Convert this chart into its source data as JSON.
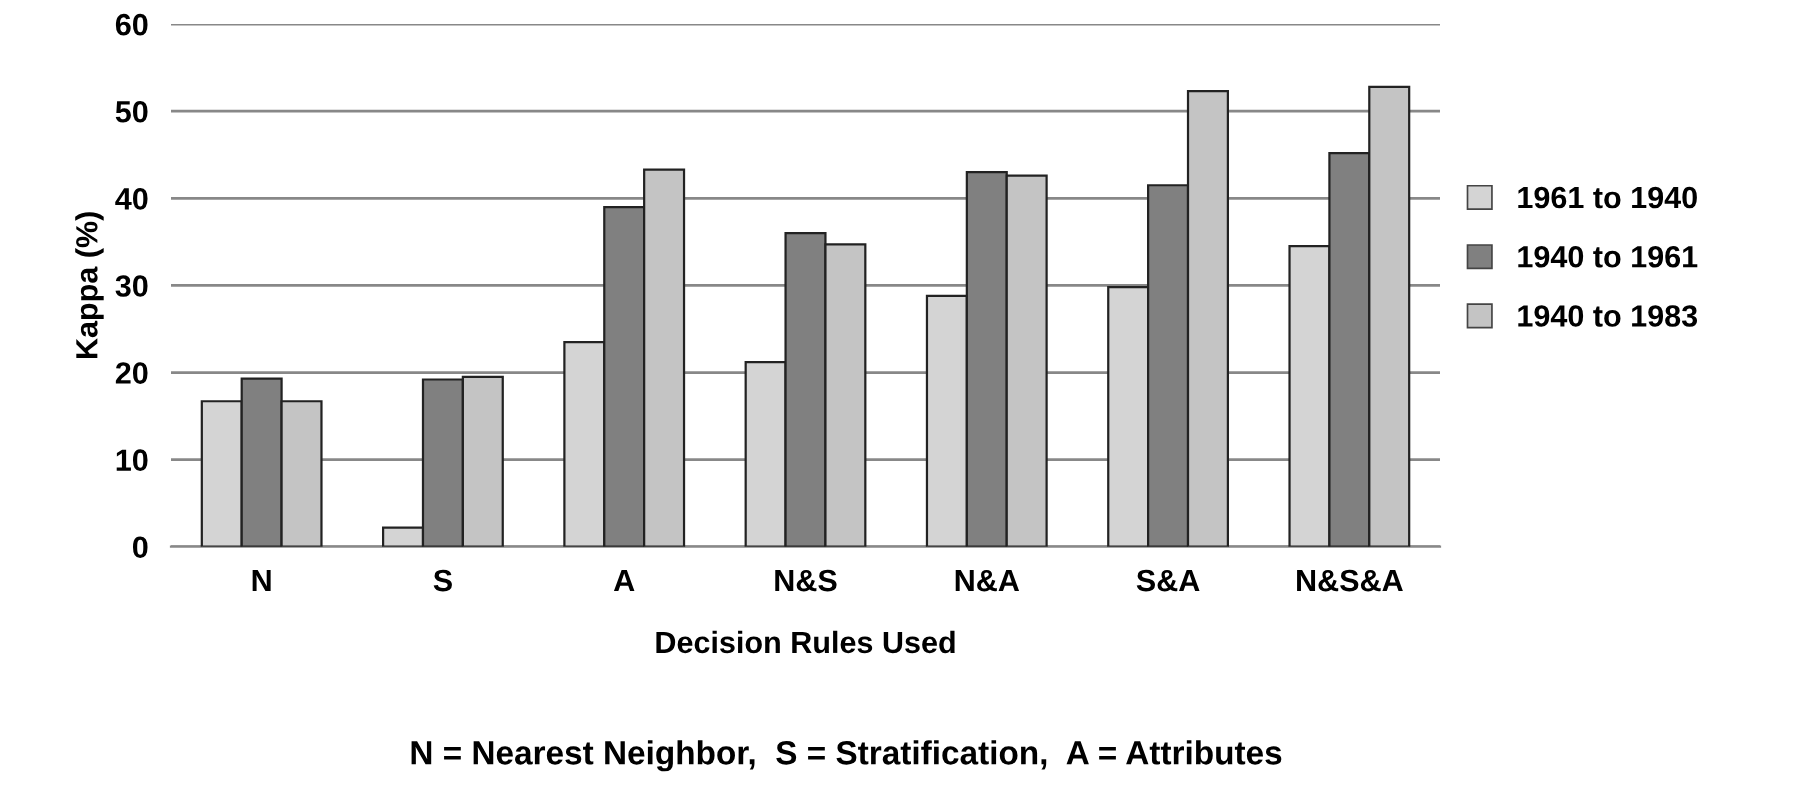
{
  "chart_data": {
    "type": "bar",
    "ylabel": "Kappa (%)",
    "xlabel": "Decision Rules Used",
    "categories": [
      "N",
      "S",
      "A",
      "N&S",
      "N&A",
      "S&A",
      "N&S&A"
    ],
    "series": [
      {
        "name": "1961 to 1940",
        "color": "#d4d4d4",
        "values": [
          16.7,
          2.2,
          23.5,
          21.2,
          28.8,
          29.8,
          34.5
        ]
      },
      {
        "name": "1940 to 1961",
        "color": "#808080",
        "values": [
          19.3,
          19.2,
          39,
          36,
          43,
          41.5,
          45.2
        ]
      },
      {
        "name": "1940 to 1983",
        "color": "#c4c4c4",
        "values": [
          16.7,
          19.5,
          43.3,
          34.7,
          42.6,
          52.3,
          52.8
        ]
      }
    ],
    "ylim": [
      0,
      60
    ],
    "yticks": [
      0,
      10,
      20,
      30,
      40,
      50,
      60
    ],
    "grid": "y",
    "legend": "right",
    "annotations": [
      "N = Nearest Neighbor,  S = Stratification,  A = Attributes"
    ]
  }
}
